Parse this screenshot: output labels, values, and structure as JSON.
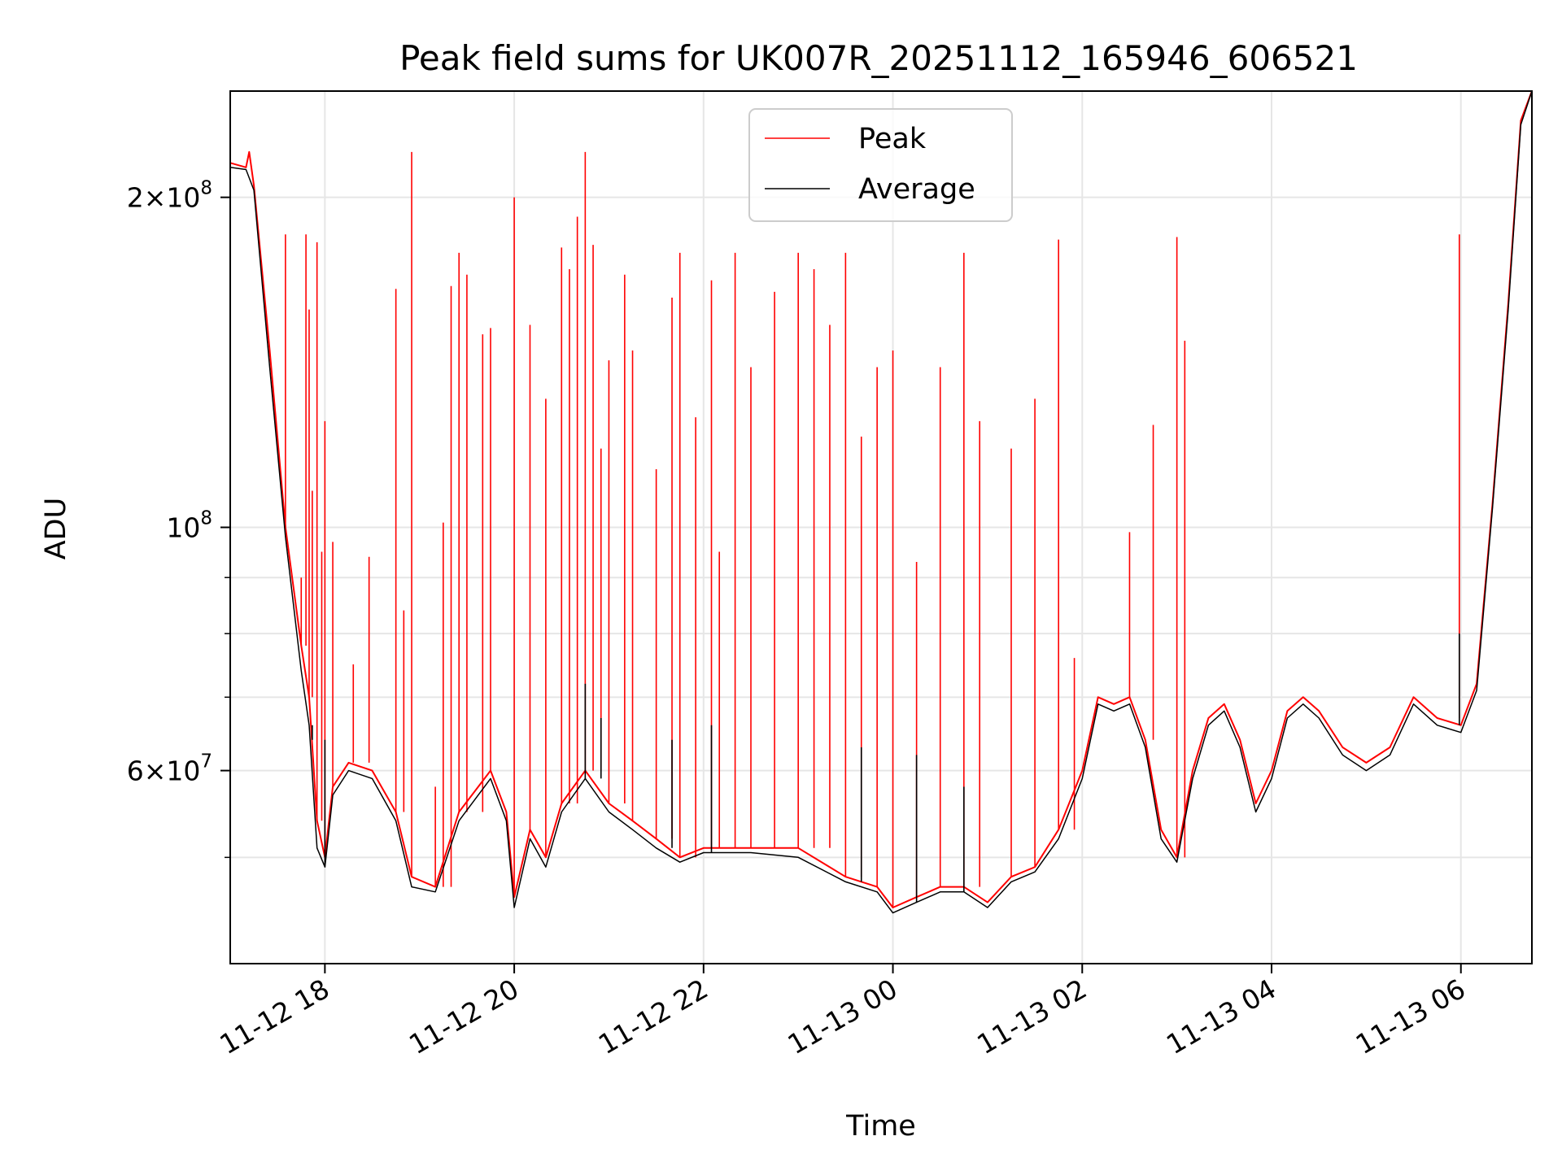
{
  "chart_data": {
    "type": "line",
    "title": "Peak field sums for UK007R_20251112_165946_606521",
    "xlabel": "Time",
    "ylabel": "ADU",
    "y_scale": "log",
    "ylim": [
      40000000,
      250000000
    ],
    "xlim": [
      "2025-11-12 17:00",
      "2025-11-13 06:45"
    ],
    "grid": true,
    "legend_position": "upper-center",
    "x_ticks": [
      {
        "t": "2025-11-12 18:00",
        "label": "11-12 18"
      },
      {
        "t": "2025-11-12 20:00",
        "label": "11-12 20"
      },
      {
        "t": "2025-11-12 22:00",
        "label": "11-12 22"
      },
      {
        "t": "2025-11-13 00:00",
        "label": "11-13 00"
      },
      {
        "t": "2025-11-13 02:00",
        "label": "11-13 02"
      },
      {
        "t": "2025-11-13 04:00",
        "label": "11-13 04"
      },
      {
        "t": "2025-11-13 06:00",
        "label": "11-13 06"
      }
    ],
    "y_ticks": [
      {
        "v": 200000000,
        "mant": "2×10",
        "exp": "8"
      },
      {
        "v": 100000000,
        "mant": "10",
        "exp": "8"
      },
      {
        "v": 60000000,
        "mant": "6×10",
        "exp": "7"
      }
    ],
    "y_minor_ticks": [
      50000000,
      70000000,
      80000000,
      90000000
    ],
    "series": [
      {
        "name": "Peak",
        "color": "#ff0000",
        "points": [
          [
            "2025-11-12 17:00",
            215000000
          ],
          [
            "2025-11-12 17:10",
            213000000
          ],
          [
            "2025-11-12 17:12",
            220000000
          ],
          [
            "2025-11-12 17:15",
            205000000
          ],
          [
            "2025-11-12 17:25",
            145000000
          ],
          [
            "2025-11-12 17:35",
            100000000
          ],
          [
            "2025-11-12 17:45",
            78000000
          ],
          [
            "2025-11-12 17:50",
            70000000
          ],
          [
            "2025-11-12 17:55",
            54000000
          ],
          [
            "2025-11-12 18:00",
            50000000
          ],
          [
            "2025-11-12 18:05",
            58000000
          ],
          [
            "2025-11-12 18:15",
            61000000
          ],
          [
            "2025-11-12 18:30",
            60000000
          ],
          [
            "2025-11-12 18:45",
            55000000
          ],
          [
            "2025-11-12 18:55",
            48000000
          ],
          [
            "2025-11-12 19:10",
            47000000
          ],
          [
            "2025-11-12 19:25",
            55000000
          ],
          [
            "2025-11-12 19:45",
            60000000
          ],
          [
            "2025-11-12 19:55",
            55000000
          ],
          [
            "2025-11-12 20:00",
            46000000
          ],
          [
            "2025-11-12 20:10",
            53000000
          ],
          [
            "2025-11-12 20:20",
            50000000
          ],
          [
            "2025-11-12 20:30",
            56000000
          ],
          [
            "2025-11-12 20:45",
            60000000
          ],
          [
            "2025-11-12 21:00",
            56000000
          ],
          [
            "2025-11-12 21:15",
            54000000
          ],
          [
            "2025-11-12 21:30",
            52000000
          ],
          [
            "2025-11-12 21:45",
            50000000
          ],
          [
            "2025-11-12 22:00",
            51000000
          ],
          [
            "2025-11-12 22:30",
            51000000
          ],
          [
            "2025-11-12 23:00",
            51000000
          ],
          [
            "2025-11-12 23:30",
            48000000
          ],
          [
            "2025-11-12 23:50",
            47000000
          ],
          [
            "2025-11-13 00:00",
            45000000
          ],
          [
            "2025-11-13 00:15",
            46000000
          ],
          [
            "2025-11-13 00:30",
            47000000
          ],
          [
            "2025-11-13 00:45",
            47000000
          ],
          [
            "2025-11-13 01:00",
            45500000
          ],
          [
            "2025-11-13 01:15",
            48000000
          ],
          [
            "2025-11-13 01:30",
            49000000
          ],
          [
            "2025-11-13 01:45",
            53000000
          ],
          [
            "2025-11-13 02:00",
            60000000
          ],
          [
            "2025-11-13 02:10",
            70000000
          ],
          [
            "2025-11-13 02:20",
            69000000
          ],
          [
            "2025-11-13 02:30",
            70000000
          ],
          [
            "2025-11-13 02:40",
            64000000
          ],
          [
            "2025-11-13 02:50",
            53000000
          ],
          [
            "2025-11-13 03:00",
            50000000
          ],
          [
            "2025-11-13 03:10",
            60000000
          ],
          [
            "2025-11-13 03:20",
            67000000
          ],
          [
            "2025-11-13 03:30",
            69000000
          ],
          [
            "2025-11-13 03:40",
            64000000
          ],
          [
            "2025-11-13 03:50",
            56000000
          ],
          [
            "2025-11-13 04:00",
            60000000
          ],
          [
            "2025-11-13 04:10",
            68000000
          ],
          [
            "2025-11-13 04:20",
            70000000
          ],
          [
            "2025-11-13 04:30",
            68000000
          ],
          [
            "2025-11-13 04:45",
            63000000
          ],
          [
            "2025-11-13 05:00",
            61000000
          ],
          [
            "2025-11-13 05:15",
            63000000
          ],
          [
            "2025-11-13 05:30",
            70000000
          ],
          [
            "2025-11-13 05:45",
            67000000
          ],
          [
            "2025-11-13 06:00",
            66000000
          ],
          [
            "2025-11-13 06:10",
            72000000
          ],
          [
            "2025-11-13 06:20",
            105000000
          ],
          [
            "2025-11-13 06:30",
            160000000
          ],
          [
            "2025-11-13 06:38",
            235000000
          ],
          [
            "2025-11-13 06:45",
            250000000
          ]
        ],
        "spikes": [
          [
            "2025-11-12 17:12",
            220000000
          ],
          [
            "2025-11-12 17:25",
            143000000
          ],
          [
            "2025-11-12 17:35",
            185000000
          ],
          [
            "2025-11-12 17:45",
            90000000
          ],
          [
            "2025-11-12 17:48",
            185000000
          ],
          [
            "2025-11-12 17:50",
            158000000
          ],
          [
            "2025-11-12 17:52",
            108000000
          ],
          [
            "2025-11-12 17:55",
            182000000
          ],
          [
            "2025-11-12 17:58",
            95000000
          ],
          [
            "2025-11-12 18:00",
            125000000
          ],
          [
            "2025-11-12 18:05",
            97000000
          ],
          [
            "2025-11-12 18:18",
            75000000
          ],
          [
            "2025-11-12 18:28",
            94000000
          ],
          [
            "2025-11-12 18:45",
            165000000
          ],
          [
            "2025-11-12 18:50",
            84000000
          ],
          [
            "2025-11-12 18:55",
            220000000
          ],
          [
            "2025-11-12 19:10",
            58000000
          ],
          [
            "2025-11-12 19:15",
            101000000
          ],
          [
            "2025-11-12 19:20",
            166000000
          ],
          [
            "2025-11-12 19:25",
            178000000
          ],
          [
            "2025-11-12 19:30",
            170000000
          ],
          [
            "2025-11-12 19:40",
            150000000
          ],
          [
            "2025-11-12 19:45",
            152000000
          ],
          [
            "2025-11-12 20:00",
            200000000
          ],
          [
            "2025-11-12 20:10",
            153000000
          ],
          [
            "2025-11-12 20:20",
            131000000
          ],
          [
            "2025-11-12 20:30",
            180000000
          ],
          [
            "2025-11-12 20:35",
            172000000
          ],
          [
            "2025-11-12 20:40",
            192000000
          ],
          [
            "2025-11-12 20:45",
            220000000
          ],
          [
            "2025-11-12 20:50",
            181000000
          ],
          [
            "2025-11-12 20:55",
            118000000
          ],
          [
            "2025-11-12 21:00",
            142000000
          ],
          [
            "2025-11-12 21:10",
            170000000
          ],
          [
            "2025-11-12 21:15",
            145000000
          ],
          [
            "2025-11-12 21:30",
            113000000
          ],
          [
            "2025-11-12 21:40",
            162000000
          ],
          [
            "2025-11-12 21:45",
            178000000
          ],
          [
            "2025-11-12 21:55",
            126000000
          ],
          [
            "2025-11-12 22:05",
            168000000
          ],
          [
            "2025-11-12 22:10",
            95000000
          ],
          [
            "2025-11-12 22:20",
            178000000
          ],
          [
            "2025-11-12 22:30",
            140000000
          ],
          [
            "2025-11-12 22:45",
            164000000
          ],
          [
            "2025-11-12 23:00",
            178000000
          ],
          [
            "2025-11-12 23:10",
            172000000
          ],
          [
            "2025-11-12 23:20",
            153000000
          ],
          [
            "2025-11-12 23:30",
            178000000
          ],
          [
            "2025-11-12 23:40",
            121000000
          ],
          [
            "2025-11-12 23:50",
            140000000
          ],
          [
            "2025-11-13 00:00",
            145000000
          ],
          [
            "2025-11-13 00:15",
            93000000
          ],
          [
            "2025-11-13 00:30",
            140000000
          ],
          [
            "2025-11-13 00:45",
            178000000
          ],
          [
            "2025-11-13 00:55",
            125000000
          ],
          [
            "2025-11-13 01:15",
            118000000
          ],
          [
            "2025-11-13 01:30",
            131000000
          ],
          [
            "2025-11-13 01:45",
            183000000
          ],
          [
            "2025-11-13 01:55",
            76000000
          ],
          [
            "2025-11-13 02:30",
            99000000
          ],
          [
            "2025-11-13 02:45",
            124000000
          ],
          [
            "2025-11-13 03:00",
            184000000
          ],
          [
            "2025-11-13 03:05",
            148000000
          ],
          [
            "2025-11-13 05:59",
            185000000
          ]
        ]
      },
      {
        "name": "Average",
        "color": "#000000",
        "points": [
          [
            "2025-11-12 17:00",
            213000000
          ],
          [
            "2025-11-12 17:10",
            212000000
          ],
          [
            "2025-11-12 17:15",
            203000000
          ],
          [
            "2025-11-12 17:25",
            140000000
          ],
          [
            "2025-11-12 17:35",
            98000000
          ],
          [
            "2025-11-12 17:45",
            74000000
          ],
          [
            "2025-11-12 17:50",
            66000000
          ],
          [
            "2025-11-12 17:55",
            51000000
          ],
          [
            "2025-11-12 18:00",
            49000000
          ],
          [
            "2025-11-12 18:05",
            57000000
          ],
          [
            "2025-11-12 18:15",
            60000000
          ],
          [
            "2025-11-12 18:30",
            59000000
          ],
          [
            "2025-11-12 18:45",
            54000000
          ],
          [
            "2025-11-12 18:55",
            47000000
          ],
          [
            "2025-11-12 19:10",
            46500000
          ],
          [
            "2025-11-12 19:25",
            54000000
          ],
          [
            "2025-11-12 19:45",
            59000000
          ],
          [
            "2025-11-12 19:55",
            54000000
          ],
          [
            "2025-11-12 20:00",
            45000000
          ],
          [
            "2025-11-12 20:10",
            52000000
          ],
          [
            "2025-11-12 20:20",
            49000000
          ],
          [
            "2025-11-12 20:30",
            55000000
          ],
          [
            "2025-11-12 20:45",
            59000000
          ],
          [
            "2025-11-12 21:00",
            55000000
          ],
          [
            "2025-11-12 21:15",
            53000000
          ],
          [
            "2025-11-12 21:30",
            51000000
          ],
          [
            "2025-11-12 21:45",
            49500000
          ],
          [
            "2025-11-12 22:00",
            50500000
          ],
          [
            "2025-11-12 22:30",
            50500000
          ],
          [
            "2025-11-12 23:00",
            50000000
          ],
          [
            "2025-11-12 23:30",
            47500000
          ],
          [
            "2025-11-12 23:50",
            46500000
          ],
          [
            "2025-11-13 00:00",
            44500000
          ],
          [
            "2025-11-13 00:15",
            45500000
          ],
          [
            "2025-11-13 00:30",
            46500000
          ],
          [
            "2025-11-13 00:45",
            46500000
          ],
          [
            "2025-11-13 01:00",
            45000000
          ],
          [
            "2025-11-13 01:15",
            47500000
          ],
          [
            "2025-11-13 01:30",
            48500000
          ],
          [
            "2025-11-13 01:45",
            52000000
          ],
          [
            "2025-11-13 02:00",
            59000000
          ],
          [
            "2025-11-13 02:10",
            69000000
          ],
          [
            "2025-11-13 02:20",
            68000000
          ],
          [
            "2025-11-13 02:30",
            69000000
          ],
          [
            "2025-11-13 02:40",
            63000000
          ],
          [
            "2025-11-13 02:50",
            52000000
          ],
          [
            "2025-11-13 03:00",
            49500000
          ],
          [
            "2025-11-13 03:10",
            59000000
          ],
          [
            "2025-11-13 03:20",
            66000000
          ],
          [
            "2025-11-13 03:30",
            68000000
          ],
          [
            "2025-11-13 03:40",
            63000000
          ],
          [
            "2025-11-13 03:50",
            55000000
          ],
          [
            "2025-11-13 04:00",
            59000000
          ],
          [
            "2025-11-13 04:10",
            67000000
          ],
          [
            "2025-11-13 04:20",
            69000000
          ],
          [
            "2025-11-13 04:30",
            67000000
          ],
          [
            "2025-11-13 04:45",
            62000000
          ],
          [
            "2025-11-13 05:00",
            60000000
          ],
          [
            "2025-11-13 05:15",
            62000000
          ],
          [
            "2025-11-13 05:30",
            69000000
          ],
          [
            "2025-11-13 05:45",
            66000000
          ],
          [
            "2025-11-13 06:00",
            65000000
          ],
          [
            "2025-11-13 06:10",
            71000000
          ],
          [
            "2025-11-13 06:20",
            104000000
          ],
          [
            "2025-11-13 06:30",
            158000000
          ],
          [
            "2025-11-13 06:38",
            233000000
          ],
          [
            "2025-11-13 06:45",
            250000000
          ]
        ],
        "spikes": [
          [
            "2025-11-12 17:52",
            64000000
          ],
          [
            "2025-11-12 18:00",
            64000000
          ],
          [
            "2025-11-12 20:45",
            72000000
          ],
          [
            "2025-11-12 20:55",
            67000000
          ],
          [
            "2025-11-12 21:40",
            64000000
          ],
          [
            "2025-11-12 22:05",
            66000000
          ],
          [
            "2025-11-12 23:40",
            63000000
          ],
          [
            "2025-11-13 00:15",
            62000000
          ],
          [
            "2025-11-13 00:45",
            58000000
          ],
          [
            "2025-11-13 05:59",
            80000000
          ]
        ]
      }
    ]
  }
}
